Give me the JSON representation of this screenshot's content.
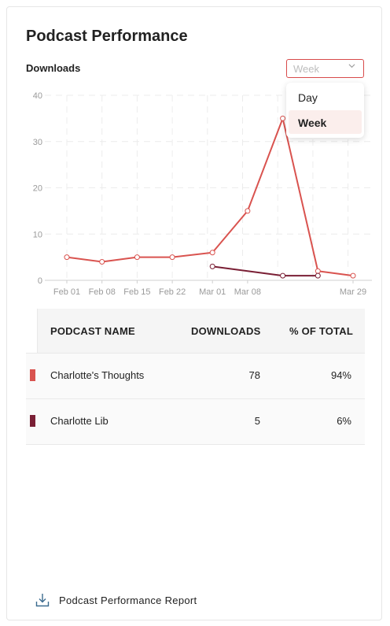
{
  "card": {
    "title": "Podcast Performance",
    "subtitle": "Downloads"
  },
  "period_select": {
    "value": "Week",
    "options": [
      "Day",
      "Week"
    ],
    "selected": "Week"
  },
  "colors": {
    "series1": "#d9534f",
    "series2": "#7a1f35",
    "accent_border": "#d84a4a",
    "selected_option_bg": "#fbeeec"
  },
  "chart_data": {
    "type": "line",
    "y_ticks": [
      "0",
      "10",
      "20",
      "30",
      "40"
    ],
    "ylim": [
      0,
      40
    ],
    "x_ticks": [
      "Feb 01",
      "Feb 08",
      "Feb 15",
      "Feb 22",
      "Mar 01",
      "Mar 08",
      "Mar 29"
    ],
    "xlim": [
      "2020-02-01",
      "2020-03-29"
    ],
    "grid": true,
    "series": [
      {
        "color": "#d9534f",
        "points": [
          {
            "x": "2020-02-01",
            "y": 5
          },
          {
            "x": "2020-02-08",
            "y": 4
          },
          {
            "x": "2020-02-15",
            "y": 5
          },
          {
            "x": "2020-02-22",
            "y": 5
          },
          {
            "x": "2020-03-01",
            "y": 6
          },
          {
            "x": "2020-03-08",
            "y": 15
          },
          {
            "x": "2020-03-15",
            "y": 35
          },
          {
            "x": "2020-03-22",
            "y": 2
          },
          {
            "x": "2020-03-29",
            "y": 1
          }
        ]
      },
      {
        "color": "#7a1f35",
        "points": [
          {
            "x": "2020-03-01",
            "y": 3
          },
          {
            "x": "2020-03-15",
            "y": 1
          },
          {
            "x": "2020-03-22",
            "y": 1
          }
        ]
      }
    ]
  },
  "table": {
    "headers": {
      "name": "PODCAST NAME",
      "downloads": "DOWNLOADS",
      "percent": "% OF TOTAL"
    },
    "rows": [
      {
        "name": "Charlotte's Thoughts",
        "downloads": "78",
        "percent": "94%",
        "color": "#d9534f"
      },
      {
        "name": "Charlotte Lib",
        "downloads": "5",
        "percent": "6%",
        "color": "#7a1f35"
      }
    ]
  },
  "report": {
    "label": "Podcast Performance Report",
    "icon": "download-icon"
  }
}
